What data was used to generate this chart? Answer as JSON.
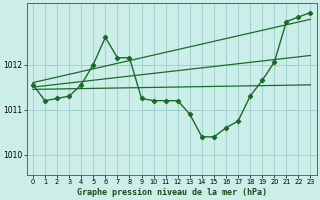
{
  "bg_color": "#cceee8",
  "grid_color": "#99cccc",
  "line_color": "#1a6b2a",
  "xlim": [
    -0.5,
    23.5
  ],
  "ylim": [
    1009.55,
    1013.35
  ],
  "yticks": [
    1010,
    1011,
    1012
  ],
  "xticks": [
    0,
    1,
    2,
    3,
    4,
    5,
    6,
    7,
    8,
    9,
    10,
    11,
    12,
    13,
    14,
    15,
    16,
    17,
    18,
    19,
    20,
    21,
    22,
    23
  ],
  "xlabel": "Graphe pression niveau de la mer (hPa)",
  "figwidth": 3.2,
  "figheight": 2.0,
  "dpi": 100,
  "series": [
    {
      "x": [
        0,
        23
      ],
      "y": [
        1011.45,
        1011.55
      ],
      "with_markers": false,
      "lw": 0.9
    },
    {
      "x": [
        0,
        23
      ],
      "y": [
        1011.5,
        1012.2
      ],
      "with_markers": false,
      "lw": 0.9
    },
    {
      "x": [
        0,
        23
      ],
      "y": [
        1011.6,
        1013.0
      ],
      "with_markers": false,
      "lw": 0.9
    },
    {
      "x": [
        0,
        1,
        2,
        3,
        4,
        5,
        6,
        7,
        8,
        9,
        10,
        11,
        12,
        13,
        14,
        15,
        16,
        17,
        18,
        19,
        20,
        21,
        22,
        23
      ],
      "y": [
        1011.55,
        1011.2,
        1011.25,
        1011.3,
        1011.55,
        1012.0,
        1012.6,
        1012.15,
        1012.15,
        1011.25,
        1011.2,
        1011.2,
        1011.2,
        1010.9,
        1010.4,
        1010.4,
        1010.6,
        1010.75,
        1011.3,
        1011.65,
        1012.05,
        1012.95,
        1013.05,
        1013.15
      ],
      "with_markers": true,
      "lw": 1.0
    }
  ]
}
